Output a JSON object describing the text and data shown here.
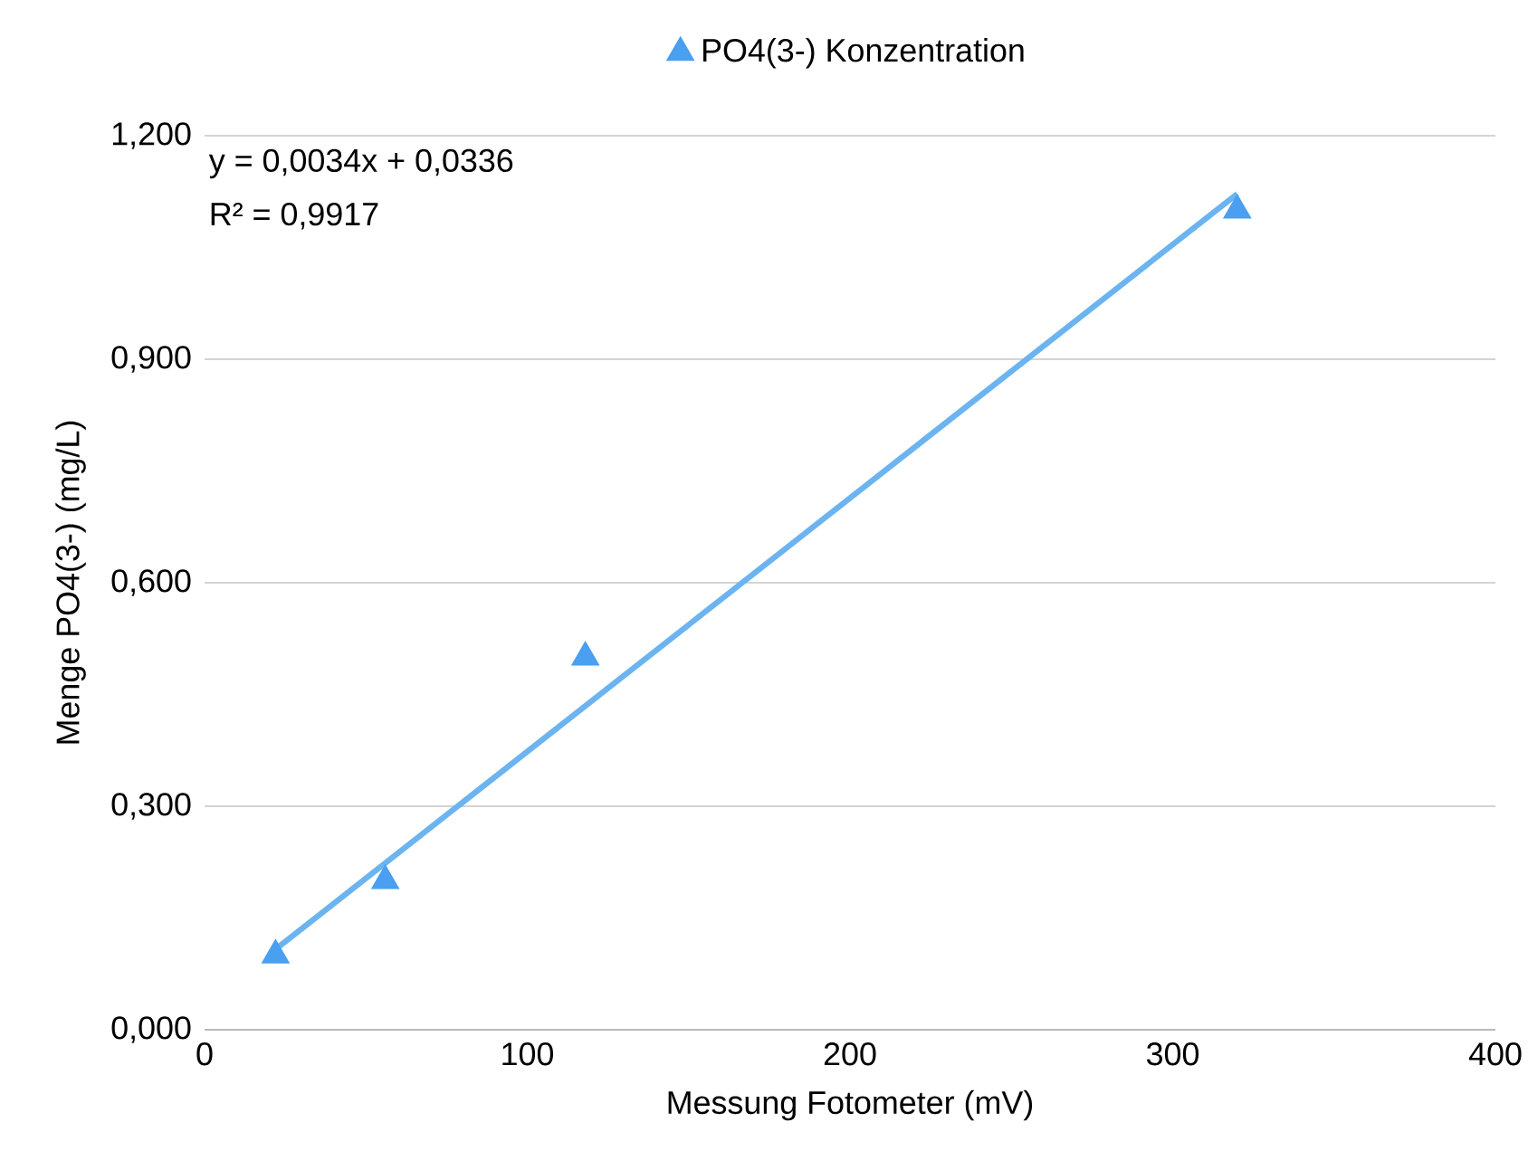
{
  "chart_data": {
    "type": "scatter",
    "xlabel": "Messung Fotometer (mV)",
    "ylabel": "Menge PO4(3-) (mg/L)",
    "series": [
      {
        "name": "PO4(3-) Konzentration",
        "color": "#4a9ff0",
        "marker": "triangle",
        "x": [
          22,
          56,
          118,
          320
        ],
        "values": [
          0.1,
          0.2,
          0.5,
          1.1
        ]
      },
      {
        "type": "line",
        "color": "#6cb4f0",
        "marker": "none",
        "x": [
          22,
          320
        ],
        "values": [
          0.108,
          1.122
        ]
      }
    ],
    "xlim": [
      0,
      400
    ],
    "ylim": [
      0,
      1.2
    ],
    "xticks": [
      0,
      100,
      200,
      300,
      400
    ],
    "yticks": [
      {
        "value": 0,
        "label": "0,000"
      },
      {
        "value": 0.3,
        "label": "0,300"
      },
      {
        "value": 0.6,
        "label": "0,600"
      },
      {
        "value": 0.9,
        "label": "0,900"
      },
      {
        "value": 1.2,
        "label": "1,200"
      }
    ],
    "grid": "y",
    "legend": "top",
    "annotations": [
      "y = 0,0034x + 0,0336",
      "R² = 0,9917"
    ]
  }
}
